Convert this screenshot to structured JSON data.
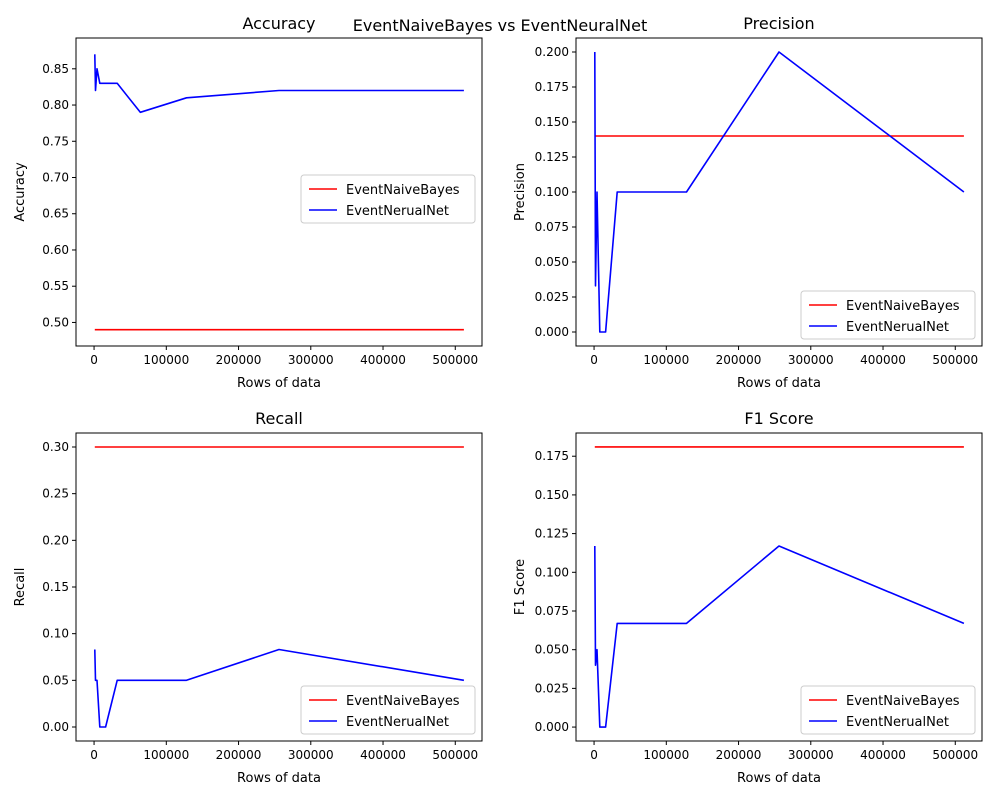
{
  "figure": {
    "suptitle": "EventNaiveBayes vs EventNeuralNet",
    "colors": {
      "EventNaiveBayes": "#ff0000",
      "EventNerualNet": "#0000ff"
    }
  },
  "chart_data": [
    {
      "type": "line",
      "title": "Accuracy",
      "xlabel": "Rows of data",
      "ylabel": "Accuracy",
      "xlim": [
        -25000,
        537000
      ],
      "ylim": [
        0.4675,
        0.8925
      ],
      "xticks": [
        0,
        100000,
        200000,
        300000,
        400000,
        500000
      ],
      "yticks": [
        0.5,
        0.55,
        0.6,
        0.65,
        0.7,
        0.75,
        0.8,
        0.85
      ],
      "ytick_labels": [
        "0.50",
        "0.55",
        "0.60",
        "0.65",
        "0.70",
        "0.75",
        "0.80",
        "0.85"
      ],
      "legend_loc": "center right",
      "series": [
        {
          "name": "EventNaiveBayes",
          "color": "#ff0000",
          "x": [
            1000,
            512000
          ],
          "y": [
            0.49,
            0.49
          ]
        },
        {
          "name": "EventNerualNet",
          "color": "#0000ff",
          "x": [
            1000,
            2000,
            4000,
            8000,
            16000,
            32000,
            64000,
            128000,
            256000,
            512000
          ],
          "y": [
            0.87,
            0.82,
            0.85,
            0.83,
            0.83,
            0.83,
            0.79,
            0.81,
            0.82,
            0.82
          ]
        }
      ]
    },
    {
      "type": "line",
      "title": "Precision",
      "xlabel": "Rows of data",
      "ylabel": "Precision",
      "xlim": [
        -25000,
        537000
      ],
      "ylim": [
        -0.01,
        0.21
      ],
      "xticks": [
        0,
        100000,
        200000,
        300000,
        400000,
        500000
      ],
      "yticks": [
        0,
        0.025,
        0.05,
        0.075,
        0.1,
        0.125,
        0.15,
        0.175,
        0.2
      ],
      "ytick_labels": [
        "0.000",
        "0.025",
        "0.050",
        "0.075",
        "0.100",
        "0.125",
        "0.150",
        "0.175",
        "0.200"
      ],
      "legend_loc": "lower right",
      "series": [
        {
          "name": "EventNaiveBayes",
          "color": "#ff0000",
          "x": [
            1000,
            512000
          ],
          "y": [
            0.14,
            0.14
          ]
        },
        {
          "name": "EventNerualNet",
          "color": "#0000ff",
          "x": [
            1000,
            2000,
            4000,
            8000,
            16000,
            32000,
            64000,
            128000,
            256000,
            512000
          ],
          "y": [
            0.2,
            0.033,
            0.1,
            0.0,
            0.0,
            0.1,
            0.1,
            0.1,
            0.2,
            0.1
          ]
        }
      ]
    },
    {
      "type": "line",
      "title": "Recall",
      "xlabel": "Rows of data",
      "ylabel": "Recall",
      "xlim": [
        -25000,
        537000
      ],
      "ylim": [
        -0.015,
        0.315
      ],
      "xticks": [
        0,
        100000,
        200000,
        300000,
        400000,
        500000
      ],
      "yticks": [
        0,
        0.05,
        0.1,
        0.15,
        0.2,
        0.25,
        0.3
      ],
      "ytick_labels": [
        "0.00",
        "0.05",
        "0.10",
        "0.15",
        "0.20",
        "0.25",
        "0.30"
      ],
      "legend_loc": "lower right",
      "series": [
        {
          "name": "EventNaiveBayes",
          "color": "#ff0000",
          "x": [
            1000,
            512000
          ],
          "y": [
            0.3,
            0.3
          ]
        },
        {
          "name": "EventNerualNet",
          "color": "#0000ff",
          "x": [
            1000,
            2000,
            4000,
            8000,
            16000,
            32000,
            64000,
            128000,
            256000,
            512000
          ],
          "y": [
            0.083,
            0.05,
            0.05,
            0.0,
            0.0,
            0.05,
            0.05,
            0.05,
            0.083,
            0.05
          ]
        }
      ]
    },
    {
      "type": "line",
      "title": "F1 Score",
      "xlabel": "Rows of data",
      "ylabel": "F1 Score",
      "xlim": [
        -25000,
        537000
      ],
      "ylim": [
        -0.009,
        0.19
      ],
      "xticks": [
        0,
        100000,
        200000,
        300000,
        400000,
        500000
      ],
      "yticks": [
        0,
        0.025,
        0.05,
        0.075,
        0.1,
        0.125,
        0.15,
        0.175
      ],
      "ytick_labels": [
        "0.000",
        "0.025",
        "0.050",
        "0.075",
        "0.100",
        "0.125",
        "0.150",
        "0.175"
      ],
      "legend_loc": "lower right",
      "series": [
        {
          "name": "EventNaiveBayes",
          "color": "#ff0000",
          "x": [
            1000,
            512000
          ],
          "y": [
            0.181,
            0.181
          ]
        },
        {
          "name": "EventNerualNet",
          "color": "#0000ff",
          "x": [
            1000,
            2000,
            4000,
            8000,
            16000,
            32000,
            64000,
            128000,
            256000,
            512000
          ],
          "y": [
            0.117,
            0.04,
            0.05,
            0.0,
            0.0,
            0.067,
            0.067,
            0.067,
            0.117,
            0.067
          ]
        }
      ]
    }
  ]
}
